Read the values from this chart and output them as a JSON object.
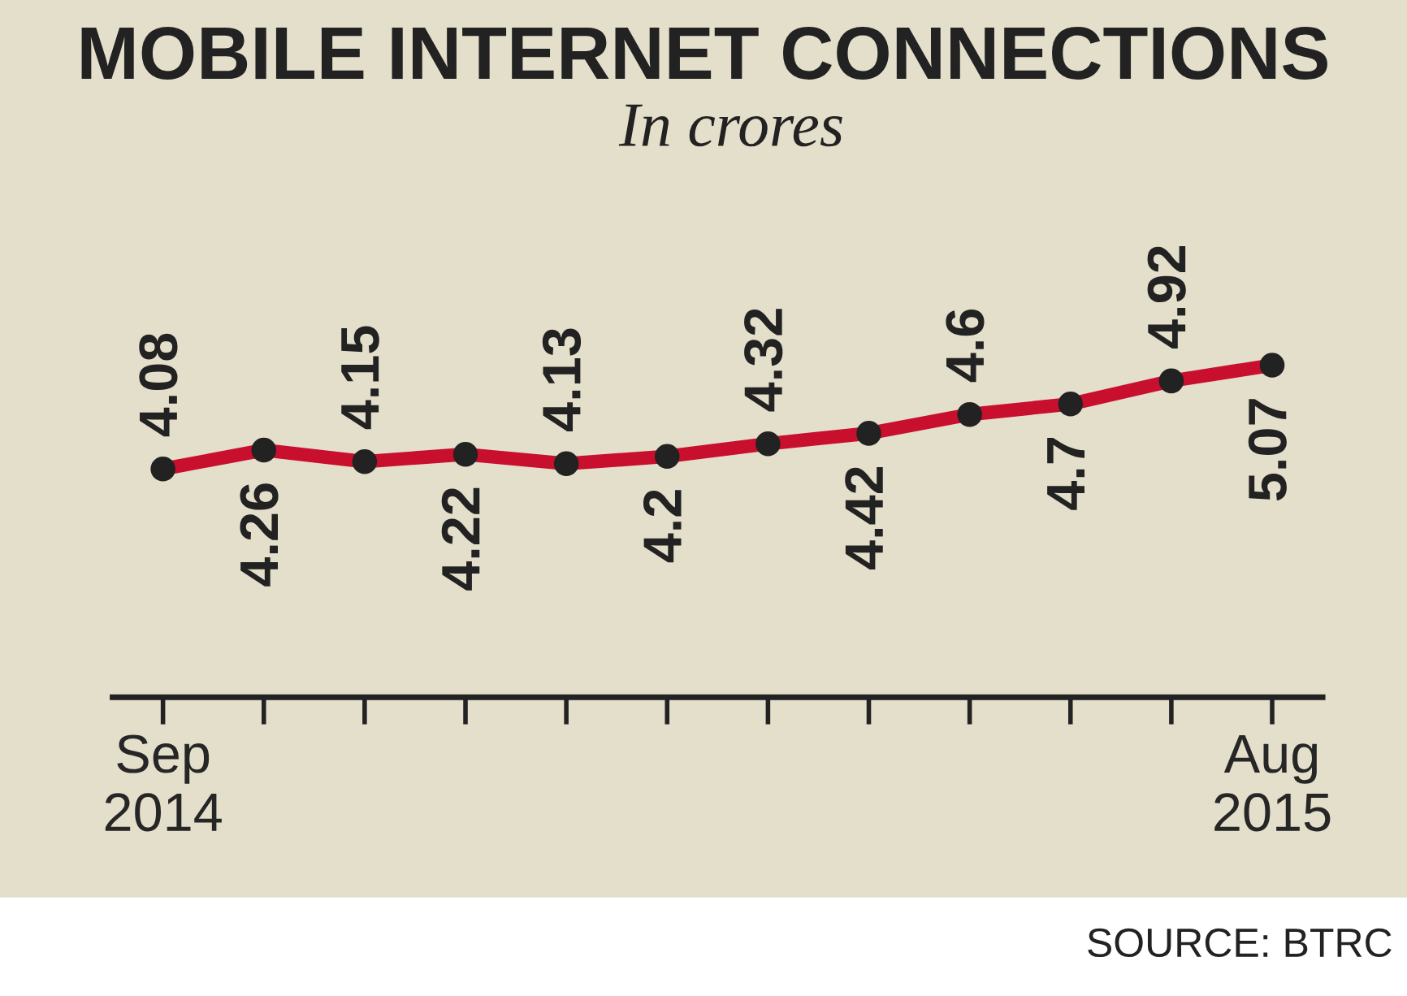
{
  "chart_data": {
    "type": "line",
    "title": "MOBILE INTERNET CONNECTIONS",
    "subtitle": "In crores",
    "categories": [
      "Sep\n2014",
      null,
      null,
      null,
      null,
      null,
      null,
      null,
      null,
      null,
      null,
      "Aug\n2015"
    ],
    "series": [
      {
        "color": "#c8102e",
        "values": [
          4.08,
          4.26,
          4.15,
          4.22,
          4.13,
          4.2,
          4.32,
          4.42,
          4.6,
          4.7,
          4.92,
          5.07
        ]
      }
    ],
    "data_labels": true,
    "marker": "circle",
    "line_style": "solid",
    "grid": false,
    "legend": false,
    "annotations": [
      "SOURCE: BTRC"
    ]
  }
}
